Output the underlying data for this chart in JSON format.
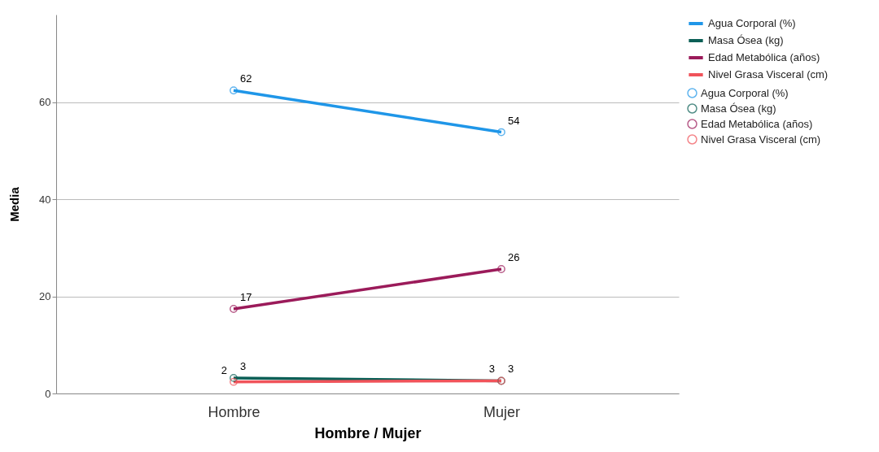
{
  "chart_data": {
    "type": "line",
    "xlabel": "Hombre / Mujer",
    "ylabel": "Media",
    "categories": [
      "Hombre",
      "Mujer"
    ],
    "series": [
      {
        "name": "Agua Corporal (%)",
        "color": "#1f96e8",
        "values": [
          62.4,
          53.8
        ],
        "value_labels": [
          "62",
          "54"
        ]
      },
      {
        "name": "Masa Ósea (kg)",
        "color": "#0b5f56",
        "values": [
          3.2,
          2.6
        ],
        "value_labels": [
          "3",
          "3"
        ]
      },
      {
        "name": "Edad Metabólica (años)",
        "color": "#9b1b5a",
        "values": [
          17.4,
          25.6
        ],
        "value_labels": [
          "17",
          "26"
        ]
      },
      {
        "name": "Nivel Grasa Visceral (cm)",
        "color": "#f0535a",
        "values": [
          2.4,
          2.6
        ],
        "value_labels": [
          "2",
          "3"
        ]
      }
    ],
    "ylim": [
      0,
      78
    ],
    "yticks": [
      0,
      20,
      40,
      60
    ],
    "grid": "y",
    "legend": "top right",
    "marker": "circle",
    "line_style": "solid"
  }
}
